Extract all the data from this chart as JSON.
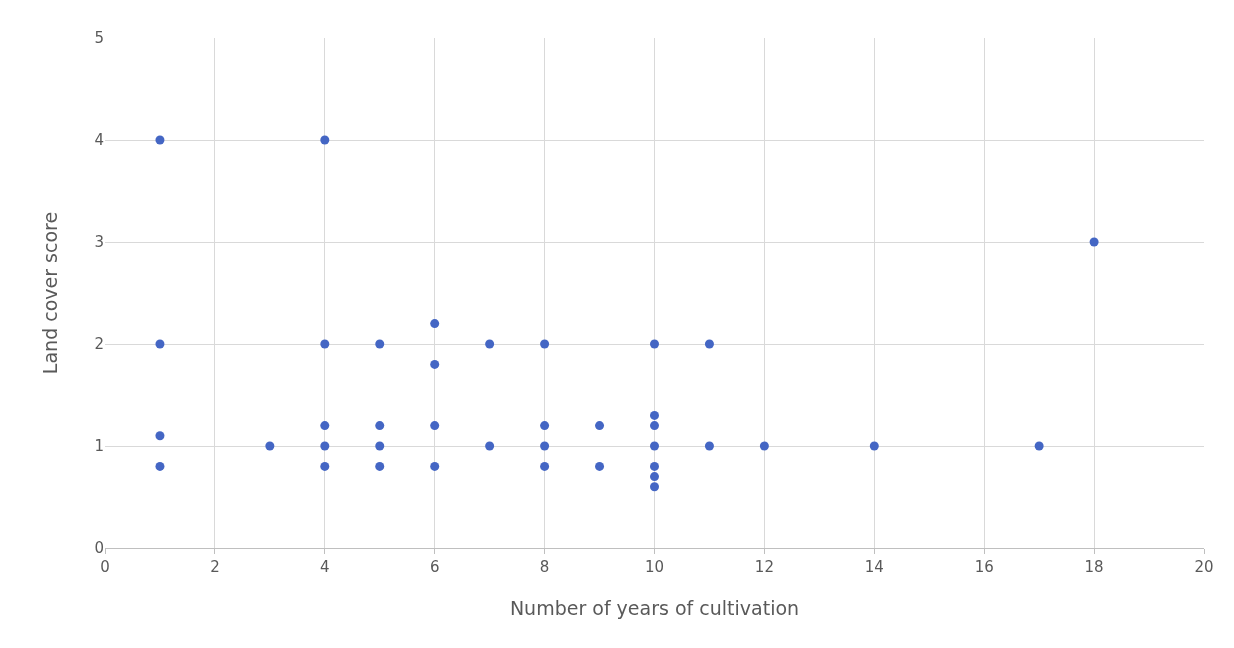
{
  "chart_data": {
    "type": "scatter",
    "xlabel": "Number of years of cultivation",
    "ylabel": "Land cover score",
    "x": [
      1,
      1,
      1,
      1,
      3,
      4,
      4,
      4,
      4,
      4,
      5,
      5,
      5,
      5,
      6,
      6,
      6,
      6,
      7,
      7,
      8,
      8,
      8,
      8,
      9,
      9,
      10,
      10,
      10,
      10,
      10,
      10,
      10,
      11,
      11,
      12,
      14,
      17,
      18
    ],
    "series": [
      {
        "color": "#4466c4",
        "values": [
          4,
          2,
          1.1,
          0.8,
          1,
          4,
          2,
          1.2,
          1,
          0.8,
          2,
          1.2,
          1,
          0.8,
          2.2,
          1.8,
          1.2,
          0.8,
          2,
          1,
          2,
          1.2,
          1,
          0.8,
          1.2,
          0.8,
          2,
          1.3,
          1.2,
          1,
          0.8,
          0.7,
          0.6,
          2,
          1,
          1,
          1,
          1,
          3
        ]
      }
    ],
    "xlim": [
      0,
      20
    ],
    "xticks": [
      0,
      2,
      4,
      6,
      8,
      10,
      12,
      14,
      16,
      18,
      20
    ],
    "ylim": [
      0,
      5
    ],
    "yticks": [
      0,
      1,
      2,
      3,
      4,
      5
    ],
    "grid": true,
    "marker": "circle"
  }
}
